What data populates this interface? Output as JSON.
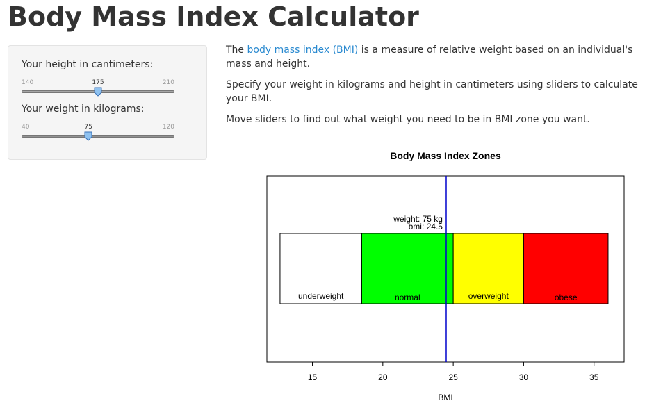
{
  "app": {
    "title": "Body Mass Index Calculator"
  },
  "sidebar": {
    "height": {
      "label": "Your height in cantimeters:",
      "min": "140",
      "max": "210",
      "value": "175",
      "fraction": 0.5
    },
    "weight": {
      "label": "Your weight in kilograms:",
      "min": "40",
      "max": "120",
      "value": "75",
      "fraction": 0.4375
    }
  },
  "main": {
    "intro_prefix": "The ",
    "intro_link": "body mass index (BMI)",
    "intro_suffix": " is a measure of relative weight based on an individual's mass and height.",
    "para2": "Specify your weight in kilograms and height in cantimeters using sliders to calculate your BMI.",
    "para3": "Move sliders to find out what weight you need to be in BMI zone you want."
  },
  "colors": {
    "underweight": "#ffffff",
    "normal": "#00ff00",
    "overweight": "#ffff00",
    "obese": "#ff0000",
    "marker": "#0000cd",
    "link": "#2a8ad0"
  },
  "chart_data": {
    "type": "bar",
    "title": "Body Mass Index Zones",
    "xlabel": "BMI",
    "ylabel": "",
    "xlim": [
      12.7,
      36
    ],
    "xticks": [
      "15",
      "20",
      "25",
      "30",
      "35"
    ],
    "zones": [
      {
        "name": "underweight",
        "from": 12.7,
        "to": 18.5
      },
      {
        "name": "normal",
        "from": 18.5,
        "to": 25
      },
      {
        "name": "overweight",
        "from": 25,
        "to": 30
      },
      {
        "name": "obese",
        "from": 30,
        "to": 36
      }
    ],
    "marker": {
      "bmi": 24.5,
      "weight_label": "weight: 75 kg",
      "bmi_label": "bmi: 24.5"
    },
    "grid": false
  }
}
